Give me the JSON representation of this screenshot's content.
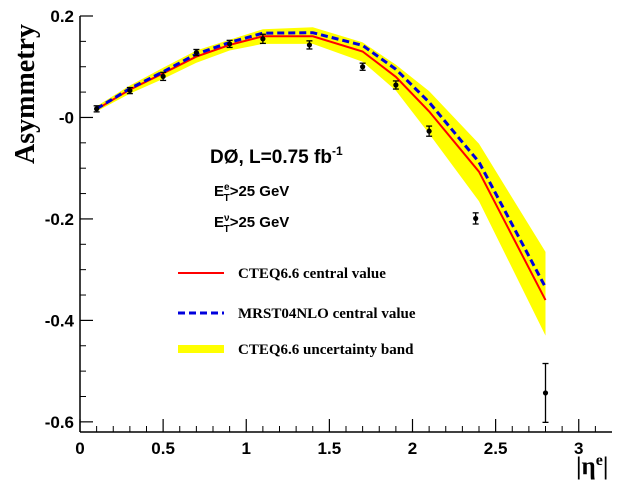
{
  "chart_data": {
    "type": "line",
    "xlabel": "|η",
    "xlabel_sup": "e",
    "xlabel_close": "|",
    "ylabel": "Asymmetry",
    "xlim": [
      0,
      3.2
    ],
    "ylim": [
      -0.62,
      0.2
    ],
    "x_ticks": [
      {
        "v": 0,
        "label": "0"
      },
      {
        "v": 0.5,
        "label": "0.5"
      },
      {
        "v": 1,
        "label": "1"
      },
      {
        "v": 1.5,
        "label": "1.5"
      },
      {
        "v": 2,
        "label": "2"
      },
      {
        "v": 2.5,
        "label": "2.5"
      },
      {
        "v": 3,
        "label": "3"
      }
    ],
    "y_ticks": [
      {
        "v": 0.2,
        "label": "0.2"
      },
      {
        "v": 0,
        "label": "-0"
      },
      {
        "v": -0.2,
        "label": "-0.2"
      },
      {
        "v": -0.4,
        "label": "-0.4"
      },
      {
        "v": -0.6,
        "label": "-0.6"
      }
    ],
    "annotation": {
      "title": "DØ, L=0.75 fb",
      "title_sup": "-1",
      "cut1": {
        "base": "E",
        "sup": "e",
        "sub": "T",
        "rest": ">25 GeV"
      },
      "cut2": {
        "base": "E",
        "sup": "ν",
        "sub": "T",
        "rest": ">25 GeV"
      }
    },
    "legend": [
      {
        "name": "CTEQ6.6 central value",
        "style": "line",
        "color": "#ff0000"
      },
      {
        "name": "MRST04NLO central value",
        "style": "dashed",
        "color": "#0000dd"
      },
      {
        "name": "CTEQ6.6 uncertainty band",
        "style": "band",
        "color": "#ffff00"
      }
    ],
    "band": {
      "name": "CTEQ6.6 uncertainty band",
      "color": "#ffff00",
      "x": [
        0.1,
        0.3,
        0.5,
        0.7,
        0.9,
        1.1,
        1.4,
        1.7,
        1.9,
        2.1,
        2.4,
        2.8
      ],
      "upper": [
        0.022,
        0.063,
        0.098,
        0.132,
        0.153,
        0.174,
        0.178,
        0.148,
        0.104,
        0.052,
        -0.052,
        -0.265
      ],
      "lower": [
        0.012,
        0.047,
        0.076,
        0.108,
        0.132,
        0.145,
        0.145,
        0.11,
        0.053,
        -0.032,
        -0.165,
        -0.43
      ]
    },
    "series": [
      {
        "name": "CTEQ6.6 central value",
        "color": "#ff0000",
        "style": "solid",
        "x": [
          0.1,
          0.3,
          0.5,
          0.7,
          0.9,
          1.1,
          1.4,
          1.7,
          1.9,
          2.1,
          2.4,
          2.8
        ],
        "y": [
          0.016,
          0.055,
          0.087,
          0.12,
          0.143,
          0.16,
          0.16,
          0.13,
          0.08,
          0.012,
          -0.107,
          -0.36
        ]
      },
      {
        "name": "MRST04NLO central value",
        "color": "#0000dd",
        "style": "dashed",
        "x": [
          0.1,
          0.3,
          0.5,
          0.7,
          0.9,
          1.1,
          1.4,
          1.7,
          1.9,
          2.1,
          2.4,
          2.8
        ],
        "y": [
          0.017,
          0.057,
          0.09,
          0.125,
          0.148,
          0.166,
          0.167,
          0.142,
          0.095,
          0.03,
          -0.088,
          -0.335
        ]
      }
    ],
    "data_points": [
      {
        "x": 0.1,
        "y": 0.017,
        "err": 0.006
      },
      {
        "x": 0.3,
        "y": 0.053,
        "err": 0.006
      },
      {
        "x": 0.5,
        "y": 0.081,
        "err": 0.008
      },
      {
        "x": 0.7,
        "y": 0.128,
        "err": 0.006
      },
      {
        "x": 0.9,
        "y": 0.145,
        "err": 0.007
      },
      {
        "x": 1.1,
        "y": 0.155,
        "err": 0.009
      },
      {
        "x": 1.38,
        "y": 0.143,
        "err": 0.008
      },
      {
        "x": 1.7,
        "y": 0.1,
        "err": 0.007
      },
      {
        "x": 1.9,
        "y": 0.064,
        "err": 0.008
      },
      {
        "x": 2.1,
        "y": -0.027,
        "err": 0.01
      },
      {
        "x": 2.38,
        "y": -0.199,
        "err": 0.011
      },
      {
        "x": 2.8,
        "y": -0.543,
        "err": 0.058
      }
    ]
  }
}
